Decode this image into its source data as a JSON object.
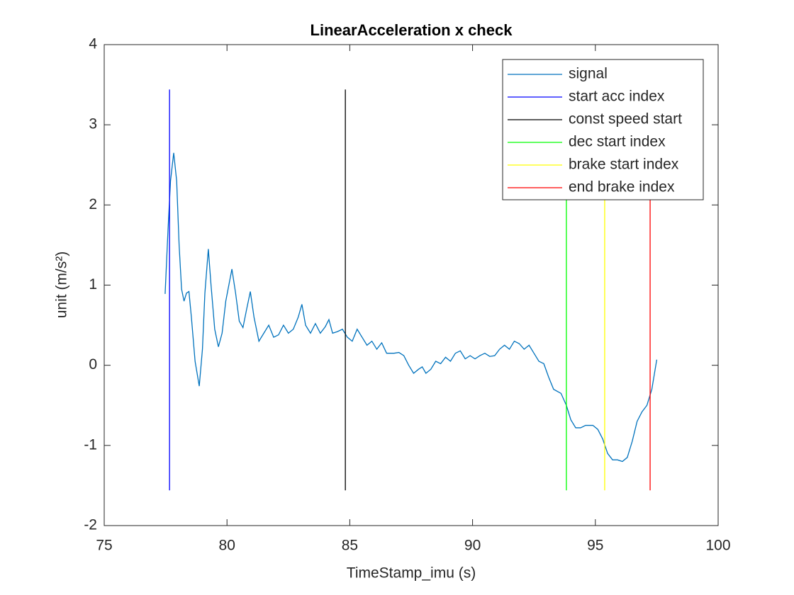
{
  "chart_data": {
    "type": "line",
    "title": "LinearAcceleration x check",
    "xlabel": "TimeStamp_imu (s)",
    "ylabel": "unit (m/s²)",
    "xlim": [
      75,
      100
    ],
    "xticks": [
      75,
      80,
      85,
      90,
      95,
      100
    ],
    "ylim": [
      -2,
      4
    ],
    "yticks": [
      -2,
      -1,
      0,
      1,
      2,
      3,
      4
    ],
    "legend": "northeast",
    "grid": false,
    "series": [
      {
        "name": "signal",
        "color": "#0072bd",
        "x": [
          77.48,
          77.6,
          77.7,
          77.83,
          77.95,
          78.05,
          78.15,
          78.25,
          78.35,
          78.45,
          78.55,
          78.7,
          78.87,
          79.0,
          79.1,
          79.24,
          79.35,
          79.5,
          79.65,
          79.8,
          79.95,
          80.2,
          80.35,
          80.5,
          80.65,
          80.8,
          80.95,
          81.1,
          81.3,
          81.5,
          81.7,
          81.9,
          82.1,
          82.3,
          82.5,
          82.7,
          82.9,
          83.05,
          83.2,
          83.4,
          83.6,
          83.8,
          84.0,
          84.15,
          84.3,
          84.5,
          84.7,
          84.9,
          85.1,
          85.3,
          85.5,
          85.7,
          85.9,
          86.1,
          86.3,
          86.5,
          86.8,
          87.0,
          87.2,
          87.4,
          87.6,
          87.8,
          87.95,
          88.1,
          88.3,
          88.5,
          88.7,
          88.9,
          89.1,
          89.3,
          89.5,
          89.7,
          89.9,
          90.1,
          90.3,
          90.5,
          90.7,
          90.9,
          91.1,
          91.3,
          91.5,
          91.7,
          91.9,
          92.1,
          92.3,
          92.5,
          92.7,
          92.9,
          93.1,
          93.3,
          93.6,
          93.82,
          94.0,
          94.2,
          94.4,
          94.6,
          94.9,
          95.1,
          95.3,
          95.5,
          95.7,
          95.9,
          96.1,
          96.3,
          96.5,
          96.7,
          96.9,
          97.1,
          97.3,
          97.5
        ],
        "values": [
          0.89,
          1.7,
          2.3,
          2.65,
          2.3,
          1.5,
          0.95,
          0.8,
          0.9,
          0.92,
          0.6,
          0.05,
          -0.26,
          0.2,
          0.9,
          1.45,
          1.0,
          0.45,
          0.23,
          0.4,
          0.8,
          1.2,
          0.9,
          0.55,
          0.47,
          0.7,
          0.92,
          0.6,
          0.3,
          0.4,
          0.5,
          0.35,
          0.38,
          0.5,
          0.4,
          0.45,
          0.6,
          0.76,
          0.5,
          0.4,
          0.52,
          0.4,
          0.48,
          0.57,
          0.4,
          0.42,
          0.45,
          0.35,
          0.3,
          0.45,
          0.35,
          0.25,
          0.3,
          0.2,
          0.28,
          0.15,
          0.15,
          0.16,
          0.12,
          0.0,
          -0.1,
          -0.05,
          -0.02,
          -0.1,
          -0.05,
          0.05,
          0.02,
          0.1,
          0.05,
          0.15,
          0.18,
          0.08,
          0.12,
          0.08,
          0.12,
          0.15,
          0.11,
          0.12,
          0.2,
          0.25,
          0.2,
          0.3,
          0.27,
          0.2,
          0.25,
          0.15,
          0.05,
          0.02,
          -0.15,
          -0.3,
          -0.35,
          -0.5,
          -0.68,
          -0.78,
          -0.78,
          -0.75,
          -0.75,
          -0.8,
          -0.92,
          -1.1,
          -1.18,
          -1.18,
          -1.2,
          -1.15,
          -0.95,
          -0.7,
          -0.58,
          -0.5,
          -0.3,
          0.07
        ]
      },
      {
        "name": "start acc index",
        "color": "#0000ff",
        "x": [
          77.66,
          77.66
        ],
        "values": [
          -1.56,
          3.44
        ]
      },
      {
        "name": "const speed start",
        "color": "#000000",
        "x": [
          84.82,
          84.82
        ],
        "values": [
          -1.56,
          3.44
        ]
      },
      {
        "name": "dec start index",
        "color": "#00ff00",
        "x": [
          93.82,
          93.82
        ],
        "values": [
          -1.56,
          3.44
        ]
      },
      {
        "name": "brake start index",
        "color": "#ffff00",
        "x": [
          95.38,
          95.38
        ],
        "values": [
          -1.56,
          3.44
        ]
      },
      {
        "name": "end brake index",
        "color": "#ff0000",
        "x": [
          97.23,
          97.23
        ],
        "values": [
          -1.56,
          3.44
        ]
      }
    ]
  }
}
